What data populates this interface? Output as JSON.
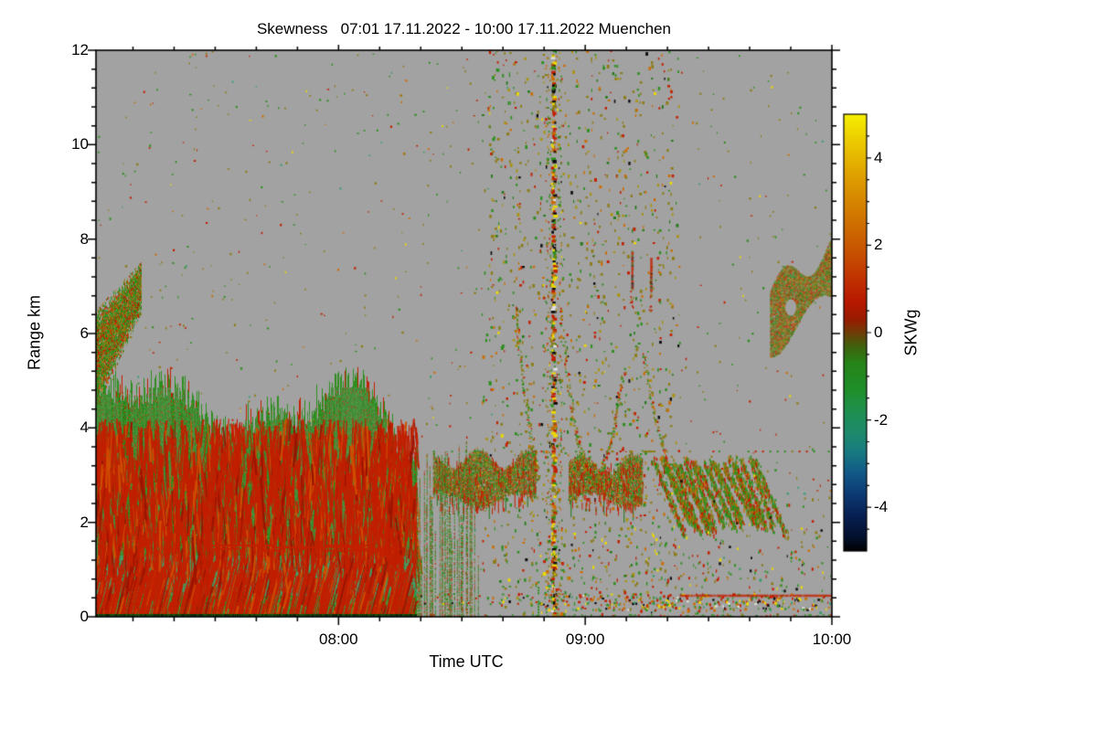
{
  "chart_data": {
    "type": "heatmap",
    "title": "Skewness   07:01 17.11.2022 - 10:00 17.11.2022 Muenchen",
    "xlabel": "Time UTC",
    "ylabel": "Range km",
    "station": "Muenchen",
    "time_span": "07:01 17.11.2022 - 10:00 17.11.2022",
    "x_axis": {
      "start": "07:01",
      "end": "10:00",
      "tick_labels": [
        "08:00",
        "09:00",
        "10:00"
      ],
      "tick_minutes": [
        60,
        120,
        180
      ],
      "range_minutes": [
        1,
        180
      ],
      "minor_interval_minutes": 10
    },
    "y_axis": {
      "range": [
        0,
        12
      ],
      "ticks": [
        0,
        2,
        4,
        6,
        8,
        10,
        12
      ],
      "minor_interval": 0.4
    },
    "colorbar": {
      "label": "SKWg",
      "range": [
        -5,
        5
      ],
      "ticks": [
        4,
        2,
        0,
        -2,
        -4
      ],
      "minor_interval": 0.5,
      "gradient_stops": [
        [
          0.0,
          "#f5f000"
        ],
        [
          0.06,
          "#eccc00"
        ],
        [
          0.14,
          "#dfa000"
        ],
        [
          0.24,
          "#d07400"
        ],
        [
          0.32,
          "#c65000"
        ],
        [
          0.38,
          "#c03000"
        ],
        [
          0.43,
          "#b81800"
        ],
        [
          0.47,
          "#981c00"
        ],
        [
          0.5,
          "#6f3c06"
        ],
        [
          0.53,
          "#41600e"
        ],
        [
          0.57,
          "#268418"
        ],
        [
          0.63,
          "#1f8f2a"
        ],
        [
          0.68,
          "#1f9050"
        ],
        [
          0.73,
          "#1e8a6c"
        ],
        [
          0.77,
          "#197c80"
        ],
        [
          0.82,
          "#125a88"
        ],
        [
          0.87,
          "#0c3a74"
        ],
        [
          0.92,
          "#071f52"
        ],
        [
          0.97,
          "#03102c"
        ],
        [
          1.0,
          "#000000"
        ]
      ]
    },
    "no_data_color": "#a2a2a2",
    "palette": {
      "green1": "#2d8f1e",
      "green2": "#217a16",
      "green3": "#389f28",
      "teal": "#2f9e6a",
      "teal2": "#2d9f50",
      "red": "#c22000",
      "darkred": "#991500",
      "orange": "#cc6c00",
      "yellow": "#ecd800",
      "olive": "#8c7c14",
      "darkyellow": "#a89410",
      "black": "#101010",
      "white": "#e0e0e0"
    },
    "regions": [
      {
        "kind": "scatter_dots",
        "t": [
          1,
          180
        ],
        "h": [
          0,
          12
        ],
        "density": 0.001,
        "desc": "isolated noise pixels on gray no-data background"
      },
      {
        "kind": "speckle_curtain",
        "t": [
          95,
          143
        ],
        "h": [
          0,
          12
        ],
        "density": 0.05,
        "desc": "full-depth sparse speckle band of olive/orange/green/red dots ~08:35-09:23"
      },
      {
        "kind": "plume",
        "t": [
          1,
          12
        ],
        "h": [
          4.8,
          7.8
        ],
        "desc": "green/red plume at left edge reaching ~7.6 km"
      },
      {
        "kind": "cloud_patch",
        "t": [
          83,
          108
        ],
        "h": [
          2.3,
          3.4
        ],
        "desc": "olive-green cloud layer patch with red specks"
      },
      {
        "kind": "cloud_patch",
        "t": [
          116,
          134
        ],
        "h": [
          2.3,
          3.3
        ],
        "desc": "second cloud layer patch around 09:00-09:15"
      },
      {
        "kind": "slant_streaks",
        "t": [
          136,
          162
        ],
        "h": [
          1.7,
          3.3
        ],
        "desc": "slanted fall-streak patches descending to the right, ends ~09:42"
      },
      {
        "kind": "blob",
        "t": [
          165,
          180
        ],
        "h": [
          5.8,
          7.85
        ],
        "desc": "crescent-shaped cloud blob near right edge 6-7.8 km"
      },
      {
        "kind": "virga_arcs",
        "arcs": [
          [
            [
              102.8,
              6.6
            ],
            [
              105.8,
              4.0
            ],
            [
              108.5,
              2.9
            ]
          ],
          [
            [
              113.8,
              6.6
            ],
            [
              117.0,
              3.4
            ],
            [
              122.0,
              2.75
            ]
          ],
          [
            [
              122.0,
              2.75
            ],
            [
              126.5,
              3.5
            ],
            [
              129.5,
              5.3
            ]
          ],
          [
            [
              134.0,
              5.6
            ],
            [
              139.0,
              3.0
            ],
            [
              144.0,
              2.6
            ]
          ]
        ],
        "desc": "V-shaped virga arc filaments around the central stripe"
      },
      {
        "kind": "boundary_layer",
        "t": [
          1,
          79
        ],
        "h_top_base": 4.15,
        "teal_band": [
          0.45,
          1.3
        ],
        "desc": "dense turbulent boundary layer, green with red updraft streaks and teal band 0.5-1.3 km"
      },
      {
        "kind": "broken_columns",
        "t": [
          79,
          94
        ],
        "h_max": 3.8,
        "desc": "breaking-up columns at end of boundary layer 08:19-08:34"
      },
      {
        "kind": "speckle_field",
        "t": [
          131,
          180
        ],
        "h": [
          0,
          3.4
        ],
        "desc": "low-level speckle field densifying toward ground on right third"
      },
      {
        "kind": "dotted_line",
        "t": [
          83,
          180
        ],
        "h": 3.52,
        "desc": "dotted horizontal line of single pixels at ~3.5 km"
      },
      {
        "kind": "bottom_stripe",
        "t": [
          79,
          180
        ],
        "h": [
          0.15,
          0.5
        ],
        "red_line_t": [
          143,
          180
        ],
        "desc": "multicolor near-surface stripe with solid red line ~0.45 km after 09:23"
      },
      {
        "kind": "vertical_stripe",
        "t": [
          112.2
        ],
        "h": [
          0,
          12
        ],
        "desc": "narrow full-depth multicolor stripe (yellow/red/black) at ~08:52"
      },
      {
        "kind": "vertical_dashes",
        "items": [
          {
            "t": 131.2,
            "h": [
              6.95,
              7.75
            ]
          },
          {
            "t": 135.8,
            "h": [
              6.9,
              7.6
            ]
          }
        ],
        "desc": "two short red vertical dashes near 7-7.7 km around 09:10"
      }
    ]
  }
}
